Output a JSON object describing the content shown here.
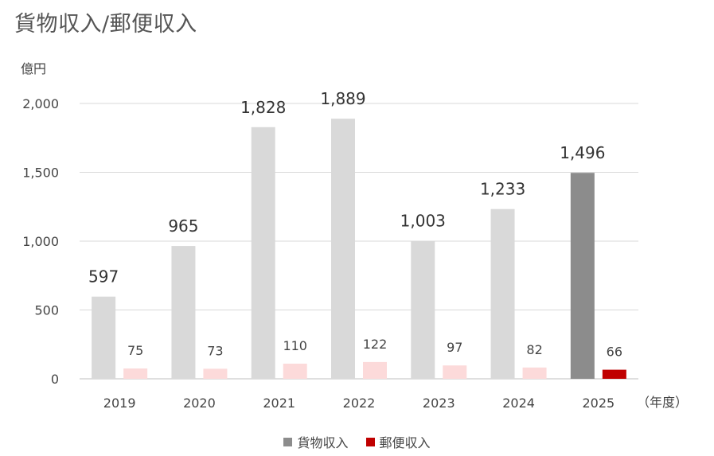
{
  "chart_data": {
    "type": "bar",
    "title": "貨物収入/郵便収入",
    "ylabel": "億円",
    "xunit": "（年度）",
    "categories": [
      "2019",
      "2020",
      "2021",
      "2022",
      "2023",
      "2024",
      "2025"
    ],
    "series": [
      {
        "name": "貨物収入",
        "values": [
          597,
          965,
          1828,
          1889,
          1003,
          1233,
          1496
        ],
        "labels": [
          "597",
          "965",
          "1,828",
          "1,889",
          "1,003",
          "1,233",
          "1,496"
        ],
        "color": "#d9d9d9",
        "highlight_color": "#8c8c8c"
      },
      {
        "name": "郵便収入",
        "values": [
          75,
          73,
          110,
          122,
          97,
          82,
          66
        ],
        "labels": [
          "75",
          "73",
          "110",
          "122",
          "97",
          "82",
          "66"
        ],
        "color": "#fcdada",
        "highlight_color": "#c00000"
      }
    ],
    "highlight_index": 6,
    "ylim": [
      0,
      2000
    ],
    "yticks": [
      0,
      500,
      1000,
      1500,
      2000
    ],
    "ytick_labels": [
      "0",
      "500",
      "1,000",
      "1,500",
      "2,000"
    ],
    "grid": true,
    "legend_position": "bottom"
  }
}
